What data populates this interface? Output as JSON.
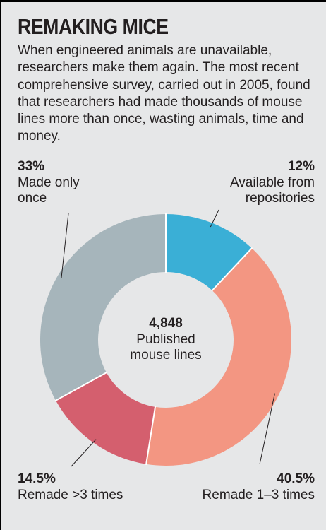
{
  "title": "REMAKING MICE",
  "description": "When engineered animals are unavailable, researchers make them again. The most recent comprehensive survey, carried out in 2005, found that researchers had made thousands of mouse lines more than once, wasting animals, time and money.",
  "chart_data": {
    "type": "pie",
    "donut": true,
    "center_value": "4,848",
    "center_label": "Published\nmouse lines",
    "slices": [
      {
        "percent_label": "12%",
        "label": "Available from\nrepositories",
        "value": 12,
        "color": "#3aafd6"
      },
      {
        "percent_label": "40.5%",
        "label": "Remade 1–3 times",
        "value": 40.5,
        "color": "#f39682"
      },
      {
        "percent_label": "14.5%",
        "label": "Remade >3 times",
        "value": 14.5,
        "color": "#d45f6e"
      },
      {
        "percent_label": "33%",
        "label": "Made only\nonce",
        "value": 33,
        "color": "#a6b5bb"
      }
    ]
  }
}
